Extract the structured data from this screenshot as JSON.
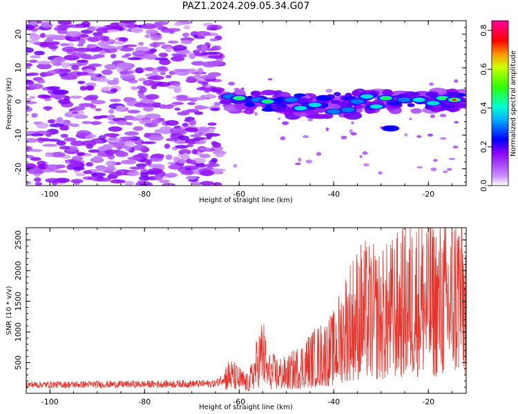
{
  "title": "PAZ1.2024.209.05.34.G07",
  "chart_data": [
    {
      "type": "heatmap",
      "xlabel": "Height of straight line (km)",
      "ylabel": "Frequency (Hz)",
      "xlim": [
        -105,
        -12
      ],
      "ylim": [
        -25,
        24
      ],
      "xticks": [
        -100,
        -80,
        -60,
        -40,
        -20
      ],
      "yticks": [
        -20,
        -10,
        0,
        10,
        20
      ],
      "colorbar": {
        "label": "Normalized spectral amplitude",
        "range": [
          0.0,
          0.85
        ],
        "ticks": [
          0.0,
          0.2,
          0.4,
          0.6,
          0.8
        ],
        "colormap": "gist_rainbow_r"
      },
      "noise_region": {
        "x_range": [
          -105,
          -64
        ],
        "y_range": [
          -25,
          24
        ],
        "amplitude_range": [
          0.05,
          0.25
        ]
      },
      "signal_blobs": [
        {
          "x": -62,
          "y": 1.5,
          "amp": 0.35
        },
        {
          "x": -60,
          "y": 1.0,
          "amp": 0.5
        },
        {
          "x": -56,
          "y": 0.5,
          "amp": 0.35
        },
        {
          "x": -54,
          "y": 0.0,
          "amp": 0.5
        },
        {
          "x": -51,
          "y": 0.5,
          "amp": 0.3
        },
        {
          "x": -49,
          "y": 0.5,
          "amp": 0.35
        },
        {
          "x": -47,
          "y": -2.0,
          "amp": 0.4
        },
        {
          "x": -44,
          "y": -1.0,
          "amp": 0.45
        },
        {
          "x": -42,
          "y": 1.0,
          "amp": 0.3
        },
        {
          "x": -40,
          "y": -3.0,
          "amp": 0.35
        },
        {
          "x": -37,
          "y": -2.5,
          "amp": 0.35
        },
        {
          "x": -35,
          "y": 0.0,
          "amp": 0.35
        },
        {
          "x": -33,
          "y": 1.5,
          "amp": 0.45
        },
        {
          "x": -31,
          "y": -1.5,
          "amp": 0.4
        },
        {
          "x": -29,
          "y": 1.0,
          "amp": 0.55
        },
        {
          "x": -28,
          "y": -8.0,
          "amp": 0.3
        },
        {
          "x": -25,
          "y": 0.5,
          "amp": 0.35
        },
        {
          "x": -22,
          "y": 0.5,
          "amp": 0.45
        },
        {
          "x": -19,
          "y": -0.5,
          "amp": 0.4
        },
        {
          "x": -17,
          "y": 1.0,
          "amp": 0.5
        },
        {
          "x": -14.5,
          "y": 0.5,
          "amp": 0.85
        }
      ]
    },
    {
      "type": "line",
      "xlabel": "Height of straight line (km)",
      "ylabel": "SNR (10 * v/v)",
      "xlim": [
        -105,
        -12
      ],
      "ylim": [
        0,
        2700
      ],
      "xticks": [
        -100,
        -80,
        -60,
        -40,
        -20
      ],
      "yticks": [
        500,
        1000,
        1500,
        2000,
        2500
      ],
      "color": "#e8332b",
      "envelope": [
        {
          "x": -105,
          "y": 150
        },
        {
          "x": -80,
          "y": 160
        },
        {
          "x": -65,
          "y": 170
        },
        {
          "x": -62,
          "y": 350
        },
        {
          "x": -58,
          "y": 180
        },
        {
          "x": -55,
          "y": 800
        },
        {
          "x": -54,
          "y": 400
        },
        {
          "x": -50,
          "y": 350
        },
        {
          "x": -45,
          "y": 600
        },
        {
          "x": -40,
          "y": 800
        },
        {
          "x": -37,
          "y": 1300
        },
        {
          "x": -34,
          "y": 1500
        },
        {
          "x": -30,
          "y": 1400
        },
        {
          "x": -26,
          "y": 1600
        },
        {
          "x": -22,
          "y": 1800
        },
        {
          "x": -18,
          "y": 1700
        },
        {
          "x": -15,
          "y": 1800
        },
        {
          "x": -13,
          "y": 2000
        },
        {
          "x": -12,
          "y": 1500
        }
      ]
    }
  ]
}
